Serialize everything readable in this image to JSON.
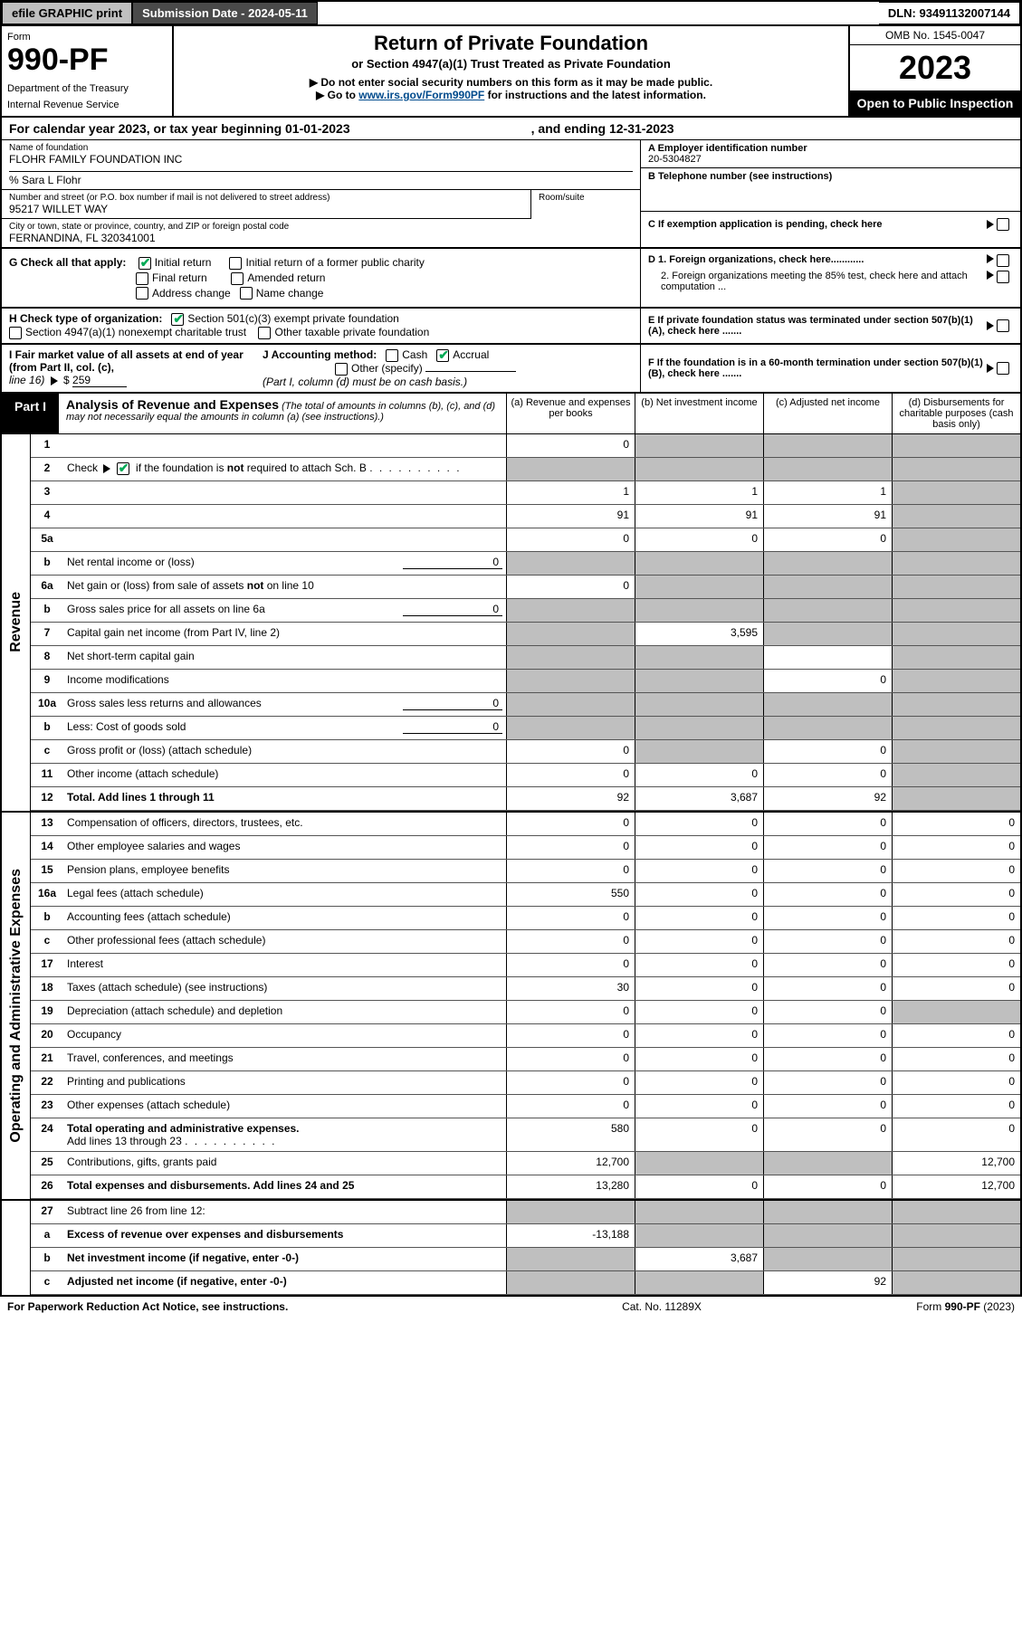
{
  "topbar": {
    "efile": "efile GRAPHIC print",
    "submission": "Submission Date - 2024-05-11",
    "dln": "DLN: 93491132007144"
  },
  "header": {
    "form_word": "Form",
    "form_no": "990-PF",
    "dept1": "Department of the Treasury",
    "dept2": "Internal Revenue Service",
    "title": "Return of Private Foundation",
    "subtitle": "or Section 4947(a)(1) Trust Treated as Private Foundation",
    "warn": "▶ Do not enter social security numbers on this form as it may be made public.",
    "goto_pre": "▶ Go to ",
    "goto_link": "www.irs.gov/Form990PF",
    "goto_post": " for instructions and the latest information.",
    "omb": "OMB No. 1545-0047",
    "year": "2023",
    "open": "Open to Public Inspection"
  },
  "cal": {
    "l": "For calendar year 2023, or tax year beginning 01-01-2023",
    "r": ", and ending 12-31-2023"
  },
  "ident": {
    "name_lbl": "Name of foundation",
    "name": "FLOHR FAMILY FOUNDATION INC",
    "care": "% Sara L Flohr",
    "addr_lbl": "Number and street (or P.O. box number if mail is not delivered to street address)",
    "addr": "95217 WILLET WAY",
    "room_lbl": "Room/suite",
    "city_lbl": "City or town, state or province, country, and ZIP or foreign postal code",
    "city": "FERNANDINA, FL  320341001",
    "a_lbl": "A Employer identification number",
    "a_val": "20-5304827",
    "b_lbl": "B Telephone number (see instructions)",
    "c_lbl": "C If exemption application is pending, check here",
    "d1": "D 1. Foreign organizations, check here............",
    "d2": "2. Foreign organizations meeting the 85% test, check here and attach computation ...",
    "e_lbl": "E  If private foundation status was terminated under section 507(b)(1)(A), check here .......",
    "f_lbl": "F  If the foundation is in a 60-month termination under section 507(b)(1)(B), check here .......",
    "g_lbl": "G Check all that apply:",
    "g_initial": "Initial return",
    "g_initial_former": "Initial return of a former public charity",
    "g_final": "Final return",
    "g_amended": "Amended return",
    "g_addrchg": "Address change",
    "g_namechg": "Name change",
    "h_lbl": "H Check type of organization:",
    "h_501c3": "Section 501(c)(3) exempt private foundation",
    "h_4947": "Section 4947(a)(1) nonexempt charitable trust",
    "h_other_tax": "Other taxable private foundation",
    "i_lbl": "I Fair market value of all assets at end of year (from Part II, col. (c),",
    "i_line": "line 16)",
    "i_val": "259",
    "j_lbl": "J Accounting method:",
    "j_cash": "Cash",
    "j_accrual": "Accrual",
    "j_other": "Other (specify)",
    "j_note": "(Part I, column (d) must be on cash basis.)"
  },
  "part1": {
    "tag": "Part I",
    "title": "Analysis of Revenue and Expenses",
    "note": " (The total of amounts in columns (b), (c), and (d) may not necessarily equal the amounts in column (a) (see instructions).)",
    "col_a": "(a)   Revenue and expenses per books",
    "col_b": "(b)   Net investment income",
    "col_c": "(c)   Adjusted net income",
    "col_d": "(d)   Disbursements for charitable purposes (cash basis only)"
  },
  "side_rev": "Revenue",
  "side_exp": "Operating and Administrative Expenses",
  "rows": {
    "1": {
      "n": "1",
      "d": "",
      "a": "0",
      "b": "",
      "c": ""
    },
    "2": {
      "n": "2",
      "d": "Check ▶ ☑ if the foundation is not required to attach Sch. B",
      "dots": true
    },
    "3": {
      "n": "3",
      "d": "",
      "a": "1",
      "b": "1",
      "c": "1"
    },
    "4": {
      "n": "4",
      "d": "",
      "a": "91",
      "b": "91",
      "c": "91"
    },
    "5a": {
      "n": "5a",
      "d": "",
      "a": "0",
      "b": "0",
      "c": "0"
    },
    "5b": {
      "n": "b",
      "d": "Net rental income or (loss)",
      "sub": "0"
    },
    "6a": {
      "n": "6a",
      "d": "Net gain or (loss) from sale of assets not on line 10",
      "a": "0"
    },
    "6b": {
      "n": "b",
      "d": "Gross sales price for all assets on line 6a",
      "sub": "0"
    },
    "7": {
      "n": "7",
      "d": "Capital gain net income (from Part IV, line 2)",
      "b": "3,595"
    },
    "8": {
      "n": "8",
      "d": "Net short-term capital gain"
    },
    "9": {
      "n": "9",
      "d": "Income modifications",
      "c": "0"
    },
    "10a": {
      "n": "10a",
      "d": "Gross sales less returns and allowances",
      "sub": "0"
    },
    "10b": {
      "n": "b",
      "d": "Less: Cost of goods sold",
      "sub": "0"
    },
    "10c": {
      "n": "c",
      "d": "Gross profit or (loss) (attach schedule)",
      "a": "0",
      "c": "0"
    },
    "11": {
      "n": "11",
      "d": "Other income (attach schedule)",
      "a": "0",
      "b": "0",
      "c": "0"
    },
    "12": {
      "n": "12",
      "d": "Total. Add lines 1 through 11",
      "a": "92",
      "b": "3,687",
      "c": "92",
      "bold": true
    },
    "13": {
      "n": "13",
      "d": "Compensation of officers, directors, trustees, etc.",
      "a": "0",
      "b": "0",
      "c": "0",
      "dd": "0"
    },
    "14": {
      "n": "14",
      "d": "Other employee salaries and wages",
      "a": "0",
      "b": "0",
      "c": "0",
      "dd": "0"
    },
    "15": {
      "n": "15",
      "d": "Pension plans, employee benefits",
      "a": "0",
      "b": "0",
      "c": "0",
      "dd": "0"
    },
    "16a": {
      "n": "16a",
      "d": "Legal fees (attach schedule)",
      "a": "550",
      "b": "0",
      "c": "0",
      "dd": "0"
    },
    "16b": {
      "n": "b",
      "d": "Accounting fees (attach schedule)",
      "a": "0",
      "b": "0",
      "c": "0",
      "dd": "0"
    },
    "16c": {
      "n": "c",
      "d": "Other professional fees (attach schedule)",
      "a": "0",
      "b": "0",
      "c": "0",
      "dd": "0"
    },
    "17": {
      "n": "17",
      "d": "Interest",
      "a": "0",
      "b": "0",
      "c": "0",
      "dd": "0"
    },
    "18": {
      "n": "18",
      "d": "Taxes (attach schedule) (see instructions)",
      "a": "30",
      "b": "0",
      "c": "0",
      "dd": "0"
    },
    "19": {
      "n": "19",
      "d": "Depreciation (attach schedule) and depletion",
      "a": "0",
      "b": "0",
      "c": "0"
    },
    "20": {
      "n": "20",
      "d": "Occupancy",
      "a": "0",
      "b": "0",
      "c": "0",
      "dd": "0"
    },
    "21": {
      "n": "21",
      "d": "Travel, conferences, and meetings",
      "a": "0",
      "b": "0",
      "c": "0",
      "dd": "0"
    },
    "22": {
      "n": "22",
      "d": "Printing and publications",
      "a": "0",
      "b": "0",
      "c": "0",
      "dd": "0"
    },
    "23": {
      "n": "23",
      "d": "Other expenses (attach schedule)",
      "a": "0",
      "b": "0",
      "c": "0",
      "dd": "0"
    },
    "24": {
      "n": "24",
      "d": "Total operating and administrative expenses.",
      "d2": "Add lines 13 through 23",
      "a": "580",
      "b": "0",
      "c": "0",
      "dd": "0",
      "bold": true
    },
    "25": {
      "n": "25",
      "d": "Contributions, gifts, grants paid",
      "a": "12,700",
      "dd": "12,700"
    },
    "26": {
      "n": "26",
      "d": "Total expenses and disbursements. Add lines 24 and 25",
      "a": "13,280",
      "b": "0",
      "c": "0",
      "dd": "12,700",
      "bold": true
    },
    "27": {
      "n": "27",
      "d": "Subtract line 26 from line 12:"
    },
    "27a": {
      "n": "a",
      "d": "Excess of revenue over expenses and disbursements",
      "a": "-13,188",
      "bold": true
    },
    "27b": {
      "n": "b",
      "d": "Net investment income (if negative, enter -0-)",
      "b": "3,687",
      "bold": true
    },
    "27c": {
      "n": "c",
      "d": "Adjusted net income (if negative, enter -0-)",
      "c": "92",
      "bold": true
    }
  },
  "footer": {
    "l": "For Paperwork Reduction Act Notice, see instructions.",
    "m": "Cat. No. 11289X",
    "r": "Form 990-PF (2023)"
  }
}
